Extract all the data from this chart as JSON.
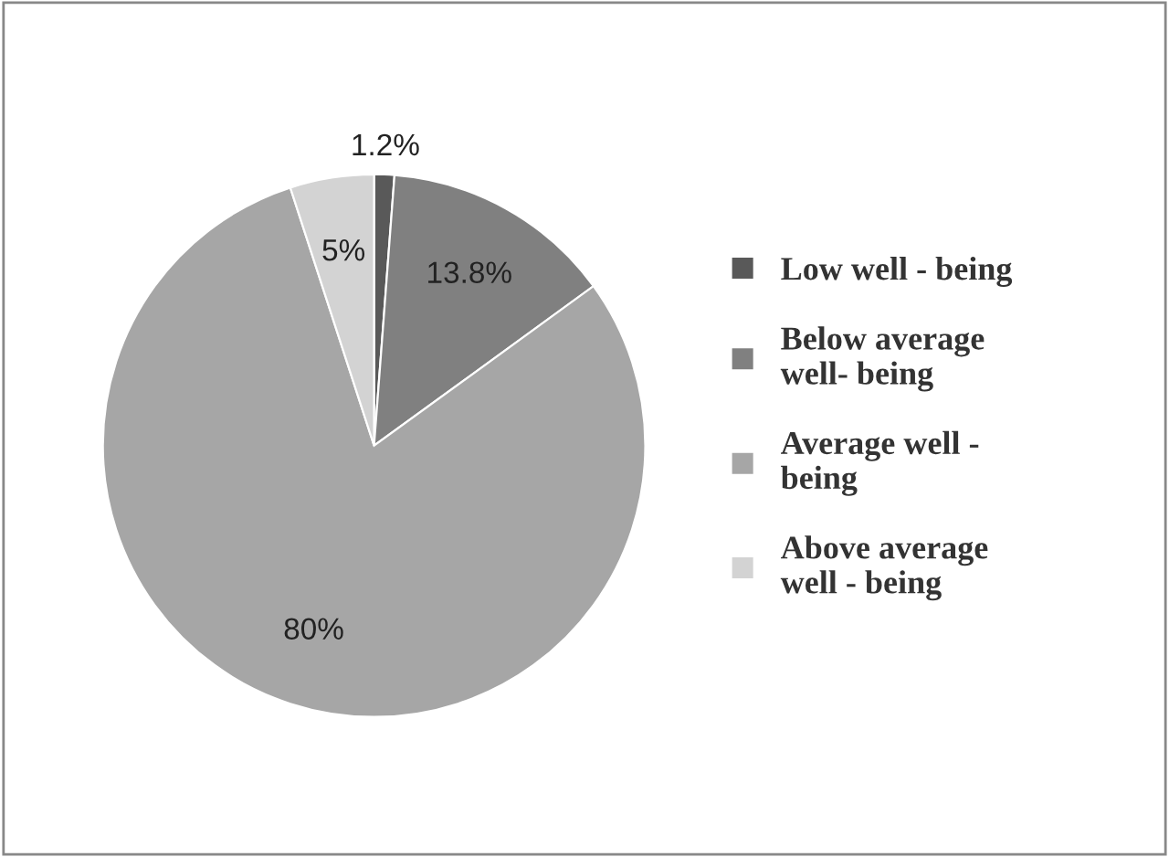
{
  "chart_data": {
    "type": "pie",
    "categories": [
      "Low well - being",
      "Below average\nwell- being",
      "Average well -\nbeing",
      "Above average\nwell - being"
    ],
    "values": [
      1.2,
      13.8,
      80,
      5
    ],
    "value_labels": [
      "1.2%",
      "13.8%",
      "80%",
      "5%"
    ],
    "colors": [
      "#595959",
      "#808080",
      "#a6a6a6",
      "#d3d3d3"
    ],
    "legend": "right"
  }
}
